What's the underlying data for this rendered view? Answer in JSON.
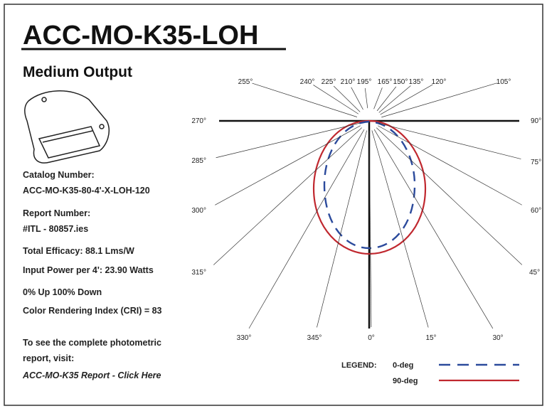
{
  "header": {
    "title": "ACC-MO-K35-LOH",
    "subtitle": "Medium Output"
  },
  "specs": [
    "Catalog Number:",
    "ACC-MO-K35-80-4'-X-LOH-120",
    "Report Number:",
    "#ITL - 80857.ies",
    "Total Efficacy:  88.1 Lms/W",
    "Input Power per 4':  23.90 Watts",
    "0% Up    100% Down",
    "Color Rendering Index (CRI) = 83",
    "To see the complete photometric",
    "report, visit:"
  ],
  "link": "ACC-MO-K35 Report - Click Here",
  "plot": {
    "angle_labels": [
      "255°",
      "240°",
      "225°",
      "210°",
      "195°",
      "165°",
      "150°",
      "135°",
      "120°",
      "105°",
      "270°",
      "90°",
      "285°",
      "75°",
      "300°",
      "60°",
      "315°",
      "45°",
      "330°",
      "345°",
      "0°",
      "15°",
      "30°"
    ]
  },
  "legend": {
    "title": "LEGEND:",
    "items": [
      "0-deg",
      "90-deg"
    ]
  }
}
